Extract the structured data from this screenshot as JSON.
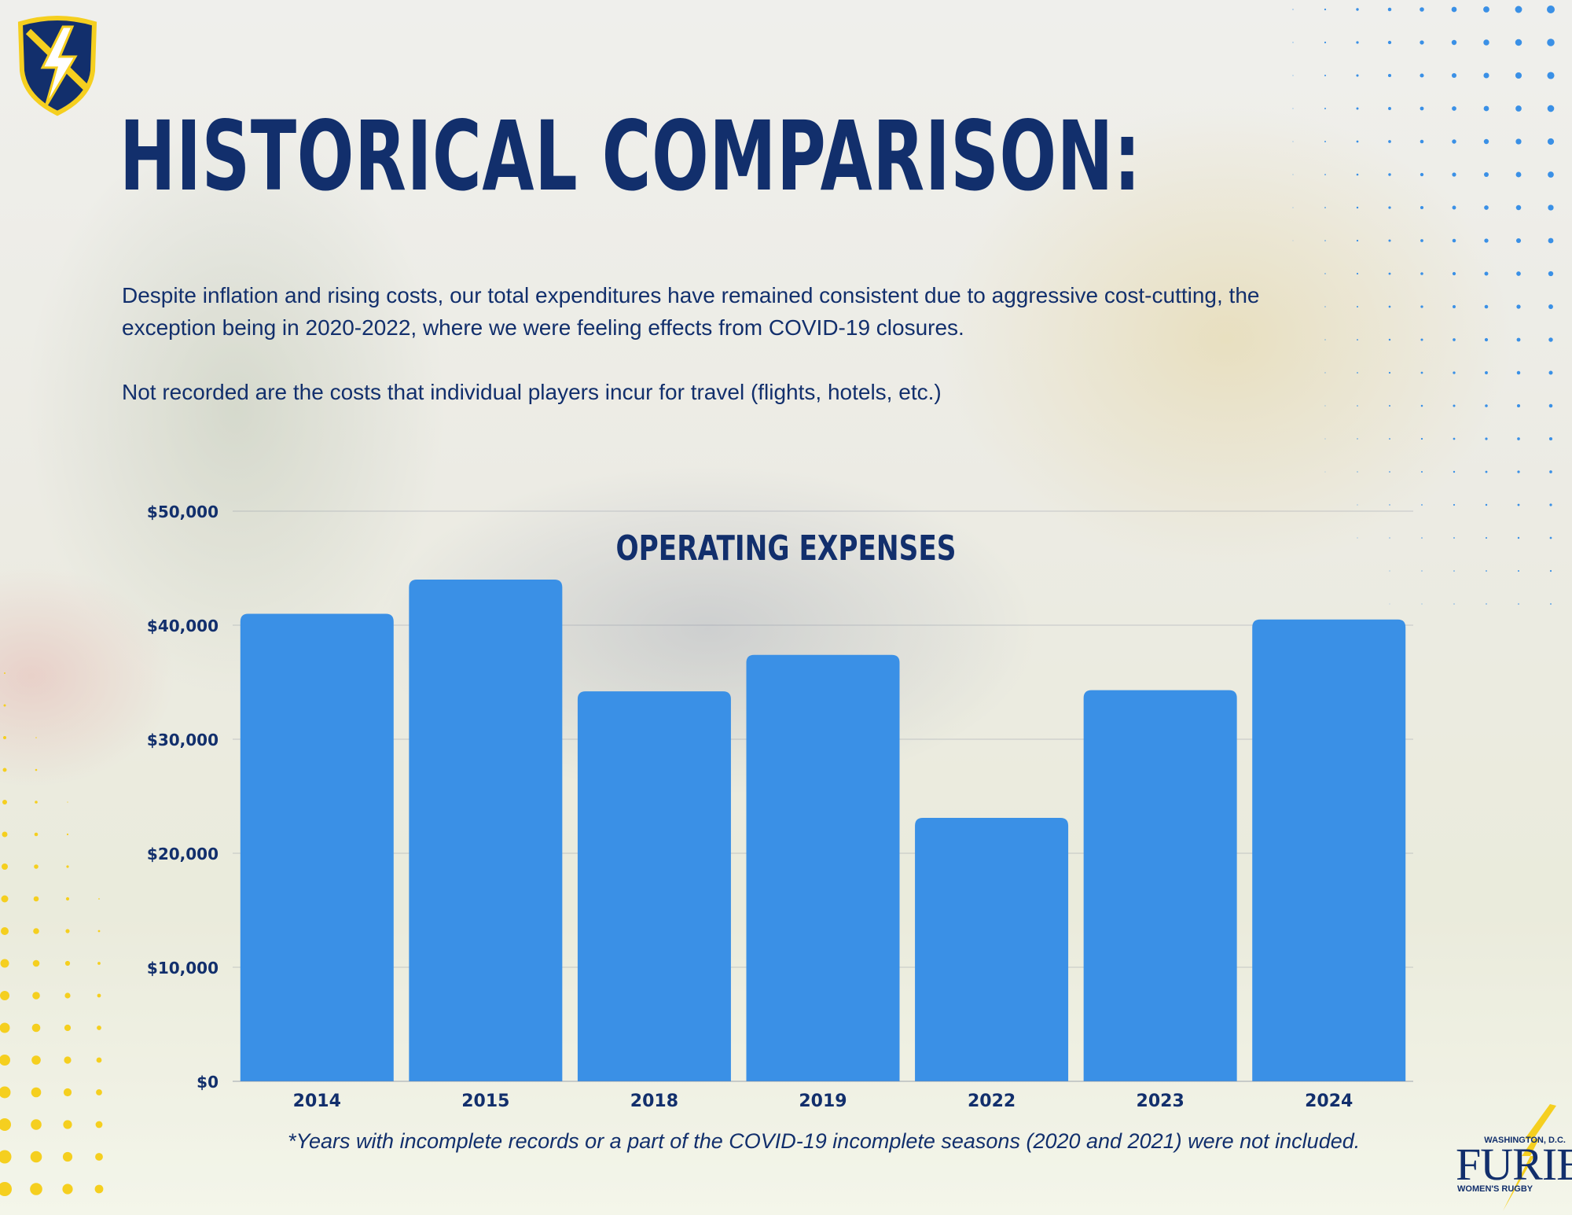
{
  "title": "HISTORICAL COMPARISON:",
  "paragraphs": [
    "Despite inflation and rising costs, our total expenditures have remained consistent due to aggressive cost-cutting, the exception being in 2020-2022, where we were feeling effects from COVID-19 closures.",
    "Not recorded are the costs that individual players incur for travel (flights, hotels, etc.)"
  ],
  "footnote": "*Years with  incomplete records or a part of the COVID-19 incomplete seasons (2020 and 2021) were not included.",
  "logo": {
    "shield_icon": "shield-lightning-icon",
    "furies_small_top": "WASHINGTON, D.C.",
    "furies_name": "FURIES",
    "furies_small_bottom": "WOMEN'S RUGBY"
  },
  "colors": {
    "navy": "#122f6c",
    "bar": "#3a90e6",
    "accent_yellow": "#f5cf1f",
    "dot_blue": "#3a90e6"
  },
  "chart_data": {
    "type": "bar",
    "title": "OPERATING EXPENSES",
    "categories": [
      "2014",
      "2015",
      "2018",
      "2019",
      "2022",
      "2023",
      "2024"
    ],
    "values": [
      41000,
      44000,
      34200,
      37400,
      23100,
      34300,
      40500
    ],
    "yticks": [
      "$0",
      "$10,000",
      "$20,000",
      "$30,000",
      "$40,000",
      "$50,000"
    ],
    "ytick_values": [
      0,
      10000,
      20000,
      30000,
      40000,
      50000
    ],
    "ylim": [
      0,
      50000
    ],
    "xlabel": "",
    "ylabel": "",
    "grid": true,
    "legend": "none"
  }
}
